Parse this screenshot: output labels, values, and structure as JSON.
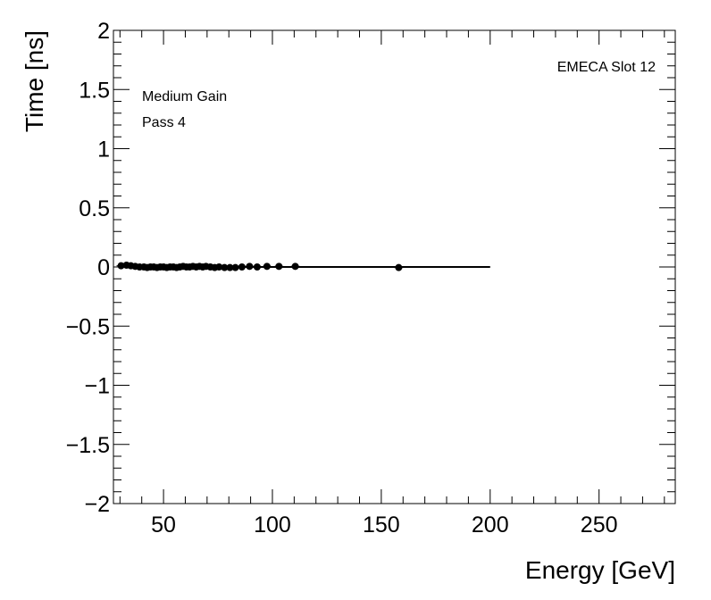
{
  "chart_data": {
    "type": "scatter",
    "xlabel": "Energy [GeV]",
    "ylabel": "Time [ns]",
    "xlim": [
      27,
      285
    ],
    "ylim": [
      -2,
      2
    ],
    "x_ticks": [
      50,
      100,
      150,
      200,
      250
    ],
    "x_tick_labels": [
      "50",
      "100",
      "150",
      "200",
      "250"
    ],
    "y_ticks": [
      -2,
      -1.5,
      -1,
      -0.5,
      0,
      0.5,
      1,
      1.5,
      2
    ],
    "y_tick_labels": [
      "−2",
      "−1.5",
      "−1",
      "−0.5",
      "0",
      "0.5",
      "1",
      "1.5",
      "2"
    ],
    "grid": false,
    "annotations": {
      "top_right": "EMECA Slot 12",
      "line1": "Medium Gain",
      "line2": "Pass 4"
    },
    "fit_line": {
      "x": [
        30,
        200
      ],
      "y": [
        0.0,
        0.0
      ]
    },
    "series": [
      {
        "x": [
          30.5,
          33,
          35,
          37,
          39,
          41,
          42.5,
          44,
          45.5,
          47,
          48.5,
          50,
          51.5,
          53,
          54.5,
          56,
          57.5,
          59,
          60.5,
          62,
          63.5,
          65,
          66.5,
          68,
          69.5,
          71.5,
          73.5,
          75.5,
          78,
          80.5,
          83,
          86,
          89.5,
          93,
          97.5,
          103,
          110.5,
          158
        ],
        "y": [
          0.01,
          0.015,
          0.01,
          0.005,
          0.0,
          0.0,
          -0.005,
          0.0,
          0.0,
          -0.005,
          0.0,
          0.0,
          -0.005,
          0.0,
          0.0,
          -0.005,
          0.0,
          0.005,
          0.0,
          0.0,
          0.005,
          0.0,
          0.005,
          0.0,
          0.005,
          0.0,
          -0.005,
          0.0,
          -0.005,
          -0.005,
          -0.005,
          0.0,
          0.005,
          0.0,
          0.005,
          0.005,
          0.005,
          -0.005
        ]
      }
    ]
  }
}
